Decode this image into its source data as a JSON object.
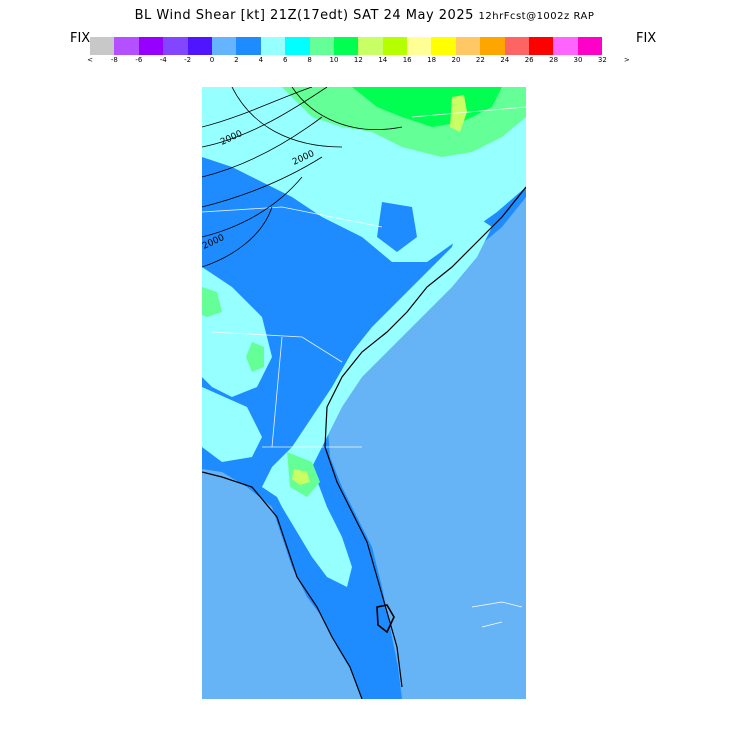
{
  "title": {
    "main": "BL Wind Shear [kt] 21Z(17edt) SAT 24 May 2025",
    "forecast": "12hrFcst@1002z RAP"
  },
  "legend": {
    "fix_left": "FIX",
    "fix_right": "FIX",
    "colors": [
      "#c8c8c8",
      "#b450ff",
      "#9600ff",
      "#8246ff",
      "#5014ff",
      "#64b4ff",
      "#1e8cff",
      "#96ffff",
      "#00ffff",
      "#64ff96",
      "#00ff50",
      "#c8ff64",
      "#b4ff00",
      "#ffff96",
      "#ffff00",
      "#ffc864",
      "#ffa500",
      "#ff6464",
      "#ff0000",
      "#ff64ff",
      "#ff00c8"
    ],
    "ticks": [
      "<",
      "-8",
      "-6",
      "-4",
      "-2",
      "0",
      "2",
      "4",
      "6",
      "8",
      "10",
      "12",
      "14",
      "16",
      "18",
      "20",
      "22",
      "24",
      "26",
      "28",
      "30",
      "32",
      ">"
    ]
  },
  "map": {
    "contour_labels": [
      "2000",
      "2000",
      "2000"
    ],
    "colors": {
      "ocean": "#66b3f5",
      "shear_low": "#1e8cff",
      "shear_mid": "#96ffff",
      "shear_high": "#64ff96",
      "shear_peak": "#00ff50",
      "shear_max": "#c8ff64"
    }
  }
}
